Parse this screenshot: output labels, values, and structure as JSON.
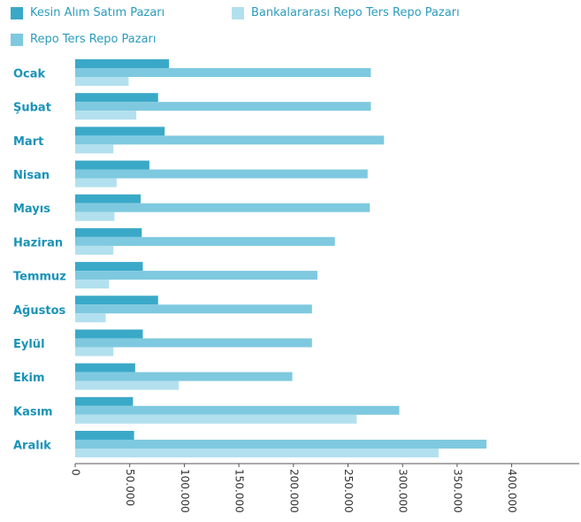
{
  "legend": [
    {
      "name": "Kesin Alım Satım Pazarı",
      "color": "#3aa9c8"
    },
    {
      "name": "Bankalararası Repo Ters Repo Pazarı",
      "color": "#b3e0ee"
    },
    {
      "name": "Repo Ters Repo Pazarı",
      "color": "#7ec9df"
    }
  ],
  "chart_data": {
    "type": "bar",
    "orientation": "horizontal",
    "categories": [
      "Ocak",
      "Şubat",
      "Mart",
      "Nisan",
      "Mayıs",
      "Haziran",
      "Temmuz",
      "Ağustos",
      "Eylül",
      "Ekim",
      "Kasım",
      "Aralık"
    ],
    "series": [
      {
        "name": "Kesin Alım Satım Pazarı",
        "color": "#3aa9c8",
        "values": [
          86000,
          76000,
          82000,
          68000,
          60000,
          61000,
          62000,
          76000,
          62000,
          55000,
          53000,
          54000
        ]
      },
      {
        "name": "Repo Ters Repo Pazarı",
        "color": "#7ec9df",
        "values": [
          271000,
          271000,
          283000,
          268000,
          270000,
          238000,
          222000,
          217000,
          217000,
          199000,
          297000,
          377000
        ]
      },
      {
        "name": "Bankalararası Repo Ters Repo Pazarı",
        "color": "#b3e0ee",
        "values": [
          49000,
          56000,
          35000,
          38000,
          36000,
          35000,
          31000,
          28000,
          35000,
          95000,
          258000,
          333000
        ]
      }
    ],
    "xlim": [
      0,
      460000
    ],
    "ticks": [
      0,
      50000,
      100000,
      150000,
      200000,
      250000,
      300000,
      350000,
      400000
    ],
    "tick_labels": [
      "0",
      "50.000",
      "100.000",
      "150.000",
      "200.000",
      "250.000",
      "300.000",
      "350.000",
      "400.000"
    ],
    "xlabel": "",
    "ylabel": "",
    "title": "",
    "grid": false,
    "legend_position": "top-left"
  }
}
